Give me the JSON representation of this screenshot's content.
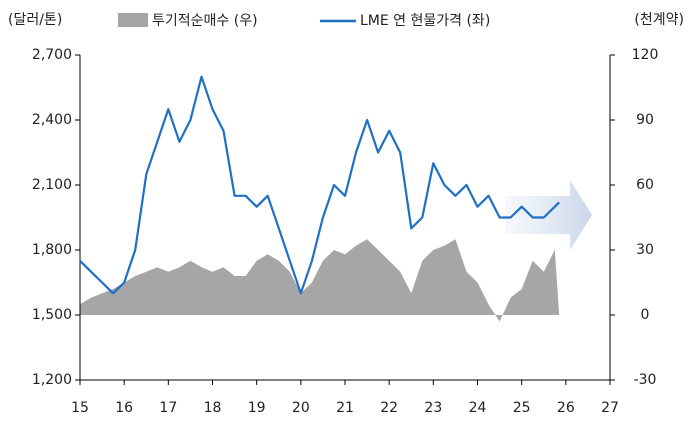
{
  "chart_data": {
    "type": "line",
    "y_label": "(달러/톤)",
    "y2_label": "(천계약)",
    "x": [
      15,
      15.25,
      15.5,
      15.75,
      16,
      16.25,
      16.5,
      16.75,
      17,
      17.25,
      17.5,
      17.75,
      18,
      18.25,
      18.5,
      18.75,
      19,
      19.25,
      19.5,
      19.75,
      20,
      20.25,
      20.5,
      20.75,
      21,
      21.25,
      21.5,
      21.75,
      22,
      22.25,
      22.5,
      22.75,
      23,
      23.25,
      23.5,
      23.75,
      24,
      24.25,
      24.5,
      24.75,
      25,
      25.25,
      25.5,
      25.75,
      25.85
    ],
    "series": [
      {
        "name": "투기적순매수 (우)",
        "color": "#a6a6a6",
        "axis": "y2",
        "area": true,
        "values": [
          5,
          8,
          10,
          12,
          15,
          18,
          20,
          22,
          20,
          22,
          25,
          22,
          20,
          22,
          18,
          18,
          25,
          28,
          25,
          20,
          10,
          15,
          25,
          30,
          28,
          32,
          35,
          30,
          25,
          20,
          10,
          25,
          30,
          32,
          35,
          20,
          15,
          5,
          -3,
          8,
          12,
          25,
          20,
          30,
          0
        ]
      },
      {
        "name": "LME 연 현물가격 (좌)",
        "color": "#1f6fc5",
        "values": [
          1750,
          1700,
          1650,
          1600,
          1650,
          1800,
          2150,
          2300,
          2450,
          2300,
          2400,
          2600,
          2450,
          2350,
          2050,
          2050,
          2000,
          2050,
          1900,
          1750,
          1600,
          1750,
          1950,
          2100,
          2050,
          2250,
          2400,
          2250,
          2350,
          2250,
          1900,
          1950,
          2200,
          2100,
          2050,
          2100,
          2000,
          2050,
          1950,
          1950,
          2000,
          1950,
          1950,
          2000,
          2020
        ]
      }
    ],
    "xlim": [
      15,
      27
    ],
    "xticks": [
      15,
      16,
      17,
      18,
      19,
      20,
      21,
      22,
      23,
      24,
      25,
      26,
      27
    ],
    "ylim": [
      1200,
      2700
    ],
    "yticks": [
      {
        "value": 1200,
        "label": "1,200"
      },
      {
        "value": 1500,
        "label": "1,500"
      },
      {
        "value": 1800,
        "label": "1,800"
      },
      {
        "value": 2100,
        "label": "2,100"
      },
      {
        "value": 2400,
        "label": "2,400"
      },
      {
        "value": 2700,
        "label": "2,700"
      }
    ],
    "y2lim": [
      -30,
      120
    ],
    "y2ticks": [
      -30,
      0,
      30,
      60,
      90,
      120
    ]
  }
}
